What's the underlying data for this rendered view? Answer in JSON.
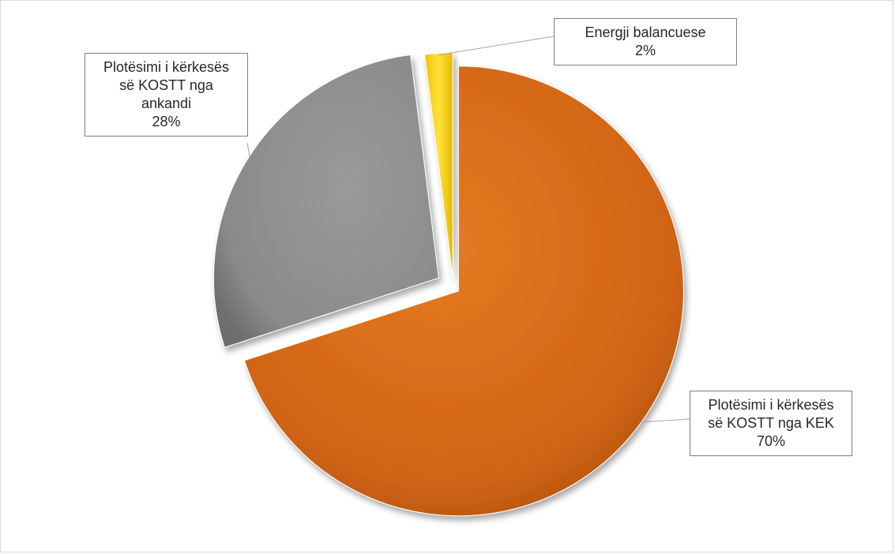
{
  "chart_data": {
    "type": "pie",
    "title": "",
    "slices": [
      {
        "label_lines": [
          "Plotësimi i kërkesës",
          "së KOSTT nga KEK"
        ],
        "value": 70,
        "value_label": "70%",
        "color": "#d26414"
      },
      {
        "label_lines": [
          "Plotësimi i kërkesës",
          "së KOSTT nga",
          "ankandi"
        ],
        "value": 28,
        "value_label": "28%",
        "color": "#8c8c8c"
      },
      {
        "label_lines": [
          "Energji balancuese"
        ],
        "value": 2,
        "value_label": "2%",
        "color": "#ffd700"
      }
    ],
    "legend": "none",
    "data_labels": "outside-with-leader-lines"
  }
}
